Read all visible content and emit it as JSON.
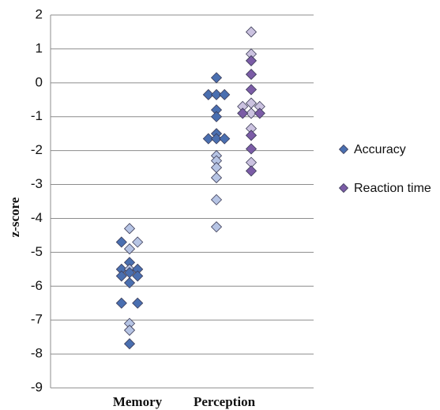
{
  "chart_data": {
    "type": "scatter",
    "categories": [
      "Memory",
      "Perception"
    ],
    "ylabel": "z-score",
    "ylim": [
      -9,
      2
    ],
    "yticks": [
      2,
      1,
      0,
      -1,
      -2,
      -3,
      -4,
      -5,
      -6,
      -7,
      -8,
      -9
    ],
    "grid": true,
    "legend_position": "right",
    "series": [
      {
        "name": "Accuracy",
        "color": "#4a6fb0",
        "light_color": "#b6c4e4",
        "points": [
          {
            "category": "Memory",
            "offset": -1,
            "y": -4.7,
            "shade": "dark"
          },
          {
            "category": "Memory",
            "offset": -1,
            "y": -5.5,
            "shade": "dark"
          },
          {
            "category": "Memory",
            "offset": -1,
            "y": -5.7,
            "shade": "dark"
          },
          {
            "category": "Memory",
            "offset": -1,
            "y": -6.5,
            "shade": "dark"
          },
          {
            "category": "Memory",
            "offset": 0,
            "y": -4.3,
            "shade": "light"
          },
          {
            "category": "Memory",
            "offset": 0,
            "y": -4.9,
            "shade": "light"
          },
          {
            "category": "Memory",
            "offset": 0,
            "y": -5.3,
            "shade": "dark"
          },
          {
            "category": "Memory",
            "offset": 0,
            "y": -5.5,
            "shade": "light"
          },
          {
            "category": "Memory",
            "offset": 0,
            "y": -5.6,
            "shade": "dark"
          },
          {
            "category": "Memory",
            "offset": 0,
            "y": -5.9,
            "shade": "dark"
          },
          {
            "category": "Memory",
            "offset": 0,
            "y": -7.1,
            "shade": "light"
          },
          {
            "category": "Memory",
            "offset": 0,
            "y": -7.3,
            "shade": "light"
          },
          {
            "category": "Memory",
            "offset": 0,
            "y": -7.7,
            "shade": "dark"
          },
          {
            "category": "Memory",
            "offset": 1,
            "y": -4.7,
            "shade": "light"
          },
          {
            "category": "Memory",
            "offset": 1,
            "y": -5.5,
            "shade": "dark"
          },
          {
            "category": "Memory",
            "offset": 1,
            "y": -5.7,
            "shade": "dark"
          },
          {
            "category": "Memory",
            "offset": 1,
            "y": -6.5,
            "shade": "dark"
          },
          {
            "category": "Perception",
            "offset": -1,
            "y": -0.35,
            "shade": "dark"
          },
          {
            "category": "Perception",
            "offset": -1,
            "y": -1.65,
            "shade": "dark"
          },
          {
            "category": "Perception",
            "offset": 0,
            "y": 0.15,
            "shade": "dark"
          },
          {
            "category": "Perception",
            "offset": 0,
            "y": -0.35,
            "shade": "dark"
          },
          {
            "category": "Perception",
            "offset": 0,
            "y": -0.8,
            "shade": "dark"
          },
          {
            "category": "Perception",
            "offset": 0,
            "y": -1.0,
            "shade": "dark"
          },
          {
            "category": "Perception",
            "offset": 0,
            "y": -1.5,
            "shade": "dark"
          },
          {
            "category": "Perception",
            "offset": 0,
            "y": -1.65,
            "shade": "dark"
          },
          {
            "category": "Perception",
            "offset": 0,
            "y": -2.15,
            "shade": "light"
          },
          {
            "category": "Perception",
            "offset": 0,
            "y": -2.3,
            "shade": "light"
          },
          {
            "category": "Perception",
            "offset": 0,
            "y": -2.5,
            "shade": "light"
          },
          {
            "category": "Perception",
            "offset": 0,
            "y": -2.8,
            "shade": "light"
          },
          {
            "category": "Perception",
            "offset": 0,
            "y": -3.45,
            "shade": "light"
          },
          {
            "category": "Perception",
            "offset": 0,
            "y": -4.25,
            "shade": "light"
          },
          {
            "category": "Perception",
            "offset": 1,
            "y": -0.35,
            "shade": "dark"
          },
          {
            "category": "Perception",
            "offset": 1,
            "y": -1.65,
            "shade": "dark"
          }
        ]
      },
      {
        "name": "Reaction time",
        "color": "#7b5ca6",
        "light_color": "#cbc2e0",
        "points": [
          {
            "category": "Perception",
            "offset": 0,
            "y": 1.5,
            "shade": "light"
          },
          {
            "category": "Perception",
            "offset": 0,
            "y": 0.85,
            "shade": "light"
          },
          {
            "category": "Perception",
            "offset": 0,
            "y": 0.65,
            "shade": "dark"
          },
          {
            "category": "Perception",
            "offset": 0,
            "y": 0.25,
            "shade": "dark"
          },
          {
            "category": "Perception",
            "offset": 0,
            "y": -0.2,
            "shade": "dark"
          },
          {
            "category": "Perception",
            "offset": 0,
            "y": -0.6,
            "shade": "light"
          },
          {
            "category": "Perception",
            "offset": 0,
            "y": -0.9,
            "shade": "light"
          },
          {
            "category": "Perception",
            "offset": 0,
            "y": -1.35,
            "shade": "light"
          },
          {
            "category": "Perception",
            "offset": 0,
            "y": -1.55,
            "shade": "dark"
          },
          {
            "category": "Perception",
            "offset": 0,
            "y": -1.95,
            "shade": "dark"
          },
          {
            "category": "Perception",
            "offset": 0,
            "y": -2.35,
            "shade": "light"
          },
          {
            "category": "Perception",
            "offset": 0,
            "y": -2.6,
            "shade": "dark"
          },
          {
            "category": "Perception",
            "offset": -1,
            "y": -0.7,
            "shade": "light"
          },
          {
            "category": "Perception",
            "offset": -1,
            "y": -0.9,
            "shade": "dark"
          },
          {
            "category": "Perception",
            "offset": 1,
            "y": -0.7,
            "shade": "light"
          },
          {
            "category": "Perception",
            "offset": 1,
            "y": -0.9,
            "shade": "dark"
          }
        ]
      }
    ]
  }
}
